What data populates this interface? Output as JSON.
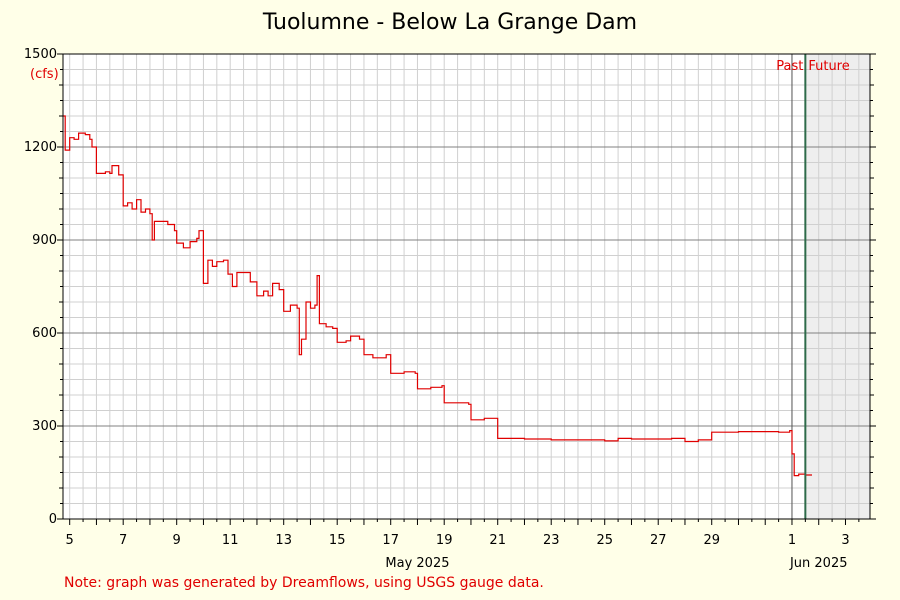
{
  "chart_data": {
    "type": "line",
    "title": "Tuolumne - Below La Grange Dam",
    "ylabel": "(cfs)",
    "xlabel": "",
    "ylim": [
      0,
      1500
    ],
    "yticks": [
      "0",
      "300",
      "600",
      "900",
      "1200",
      "1500"
    ],
    "xticks": [
      {
        "label": "5",
        "x": "2025-05-05"
      },
      {
        "label": "7",
        "x": "2025-05-07"
      },
      {
        "label": "9",
        "x": "2025-05-09"
      },
      {
        "label": "11",
        "x": "2025-05-11"
      },
      {
        "label": "13",
        "x": "2025-05-13"
      },
      {
        "label": "15",
        "x": "2025-05-15"
      },
      {
        "label": "17",
        "x": "2025-05-17"
      },
      {
        "label": "19",
        "x": "2025-05-19"
      },
      {
        "label": "21",
        "x": "2025-05-21"
      },
      {
        "label": "23",
        "x": "2025-05-23"
      },
      {
        "label": "25",
        "x": "2025-05-25"
      },
      {
        "label": "27",
        "x": "2025-05-27"
      },
      {
        "label": "29",
        "x": "2025-05-29"
      },
      {
        "label": "1",
        "x": "2025-06-01"
      },
      {
        "label": "3",
        "x": "2025-06-03"
      }
    ],
    "month_labels": [
      {
        "label": "May 2025",
        "x": "2025-05-18"
      },
      {
        "label": "Jun 2025",
        "x": "2025-06-02"
      }
    ],
    "xlim": [
      "2025-05-04 18:00",
      "2025-06-03 22:00"
    ],
    "past_label": "Past",
    "future_label": "Future",
    "now": "2025-06-01 12:00",
    "grid": true,
    "series": [
      {
        "color": "#e00000",
        "points": [
          [
            "2025-05-04 18:00",
            1300
          ],
          [
            "2025-05-04 20:00",
            1190
          ],
          [
            "2025-05-05 00:00",
            1230
          ],
          [
            "2025-05-05 04:00",
            1225
          ],
          [
            "2025-05-05 08:00",
            1245
          ],
          [
            "2025-05-05 14:00",
            1240
          ],
          [
            "2025-05-05 18:00",
            1225
          ],
          [
            "2025-05-05 20:00",
            1200
          ],
          [
            "2025-05-06 00:00",
            1115
          ],
          [
            "2025-05-06 08:00",
            1120
          ],
          [
            "2025-05-06 12:00",
            1115
          ],
          [
            "2025-05-06 14:00",
            1140
          ],
          [
            "2025-05-06 20:00",
            1110
          ],
          [
            "2025-05-07 00:00",
            1010
          ],
          [
            "2025-05-07 04:00",
            1020
          ],
          [
            "2025-05-07 08:00",
            1000
          ],
          [
            "2025-05-07 12:00",
            1030
          ],
          [
            "2025-05-07 16:00",
            990
          ],
          [
            "2025-05-07 20:00",
            1000
          ],
          [
            "2025-05-08 00:00",
            985
          ],
          [
            "2025-05-08 02:00",
            900
          ],
          [
            "2025-05-08 04:00",
            960
          ],
          [
            "2025-05-08 10:00",
            960
          ],
          [
            "2025-05-08 16:00",
            950
          ],
          [
            "2025-05-08 22:00",
            930
          ],
          [
            "2025-05-09 00:00",
            890
          ],
          [
            "2025-05-09 06:00",
            875
          ],
          [
            "2025-05-09 12:00",
            895
          ],
          [
            "2025-05-09 18:00",
            905
          ],
          [
            "2025-05-09 20:00",
            930
          ],
          [
            "2025-05-10 00:00",
            760
          ],
          [
            "2025-05-10 04:00",
            835
          ],
          [
            "2025-05-10 08:00",
            815
          ],
          [
            "2025-05-10 12:00",
            830
          ],
          [
            "2025-05-10 18:00",
            835
          ],
          [
            "2025-05-10 22:00",
            790
          ],
          [
            "2025-05-11 02:00",
            750
          ],
          [
            "2025-05-11 06:00",
            795
          ],
          [
            "2025-05-11 12:00",
            795
          ],
          [
            "2025-05-11 18:00",
            765
          ],
          [
            "2025-05-12 00:00",
            720
          ],
          [
            "2025-05-12 06:00",
            735
          ],
          [
            "2025-05-12 10:00",
            720
          ],
          [
            "2025-05-12 14:00",
            760
          ],
          [
            "2025-05-12 20:00",
            740
          ],
          [
            "2025-05-13 00:00",
            670
          ],
          [
            "2025-05-13 06:00",
            690
          ],
          [
            "2025-05-13 12:00",
            680
          ],
          [
            "2025-05-13 14:00",
            530
          ],
          [
            "2025-05-13 16:00",
            580
          ],
          [
            "2025-05-13 20:00",
            700
          ],
          [
            "2025-05-14 00:00",
            680
          ],
          [
            "2025-05-14 04:00",
            690
          ],
          [
            "2025-05-14 06:00",
            785
          ],
          [
            "2025-05-14 08:00",
            630
          ],
          [
            "2025-05-14 14:00",
            620
          ],
          [
            "2025-05-14 20:00",
            615
          ],
          [
            "2025-05-15 00:00",
            570
          ],
          [
            "2025-05-15 08:00",
            575
          ],
          [
            "2025-05-15 12:00",
            590
          ],
          [
            "2025-05-15 20:00",
            580
          ],
          [
            "2025-05-16 00:00",
            530
          ],
          [
            "2025-05-16 08:00",
            520
          ],
          [
            "2025-05-16 16:00",
            520
          ],
          [
            "2025-05-16 20:00",
            530
          ],
          [
            "2025-05-17 00:00",
            470
          ],
          [
            "2025-05-17 12:00",
            475
          ],
          [
            "2025-05-17 22:00",
            470
          ],
          [
            "2025-05-18 00:00",
            420
          ],
          [
            "2025-05-18 12:00",
            425
          ],
          [
            "2025-05-18 22:00",
            430
          ],
          [
            "2025-05-19 00:00",
            375
          ],
          [
            "2025-05-19 12:00",
            375
          ],
          [
            "2025-05-19 22:00",
            370
          ],
          [
            "2025-05-20 00:00",
            320
          ],
          [
            "2025-05-20 12:00",
            325
          ],
          [
            "2025-05-20 22:00",
            325
          ],
          [
            "2025-05-21 00:00",
            260
          ],
          [
            "2025-05-21 12:00",
            260
          ],
          [
            "2025-05-22 00:00",
            258
          ],
          [
            "2025-05-23 00:00",
            255
          ],
          [
            "2025-05-24 00:00",
            255
          ],
          [
            "2025-05-25 00:00",
            252
          ],
          [
            "2025-05-25 12:00",
            260
          ],
          [
            "2025-05-26 00:00",
            258
          ],
          [
            "2025-05-27 00:00",
            258
          ],
          [
            "2025-05-27 12:00",
            260
          ],
          [
            "2025-05-28 00:00",
            250
          ],
          [
            "2025-05-28 12:00",
            255
          ],
          [
            "2025-05-29 00:00",
            280
          ],
          [
            "2025-05-30 00:00",
            282
          ],
          [
            "2025-05-31 00:00",
            282
          ],
          [
            "2025-05-31 12:00",
            280
          ],
          [
            "2025-05-31 22:00",
            285
          ],
          [
            "2025-06-01 00:00",
            210
          ],
          [
            "2025-06-01 02:00",
            140
          ],
          [
            "2025-06-01 06:00",
            145
          ],
          [
            "2025-06-01 12:00",
            142
          ],
          [
            "2025-06-01 18:00",
            142
          ]
        ]
      }
    ]
  },
  "footer": {
    "note": "Note: graph was generated by Dreamflows, using USGS gauge data."
  }
}
